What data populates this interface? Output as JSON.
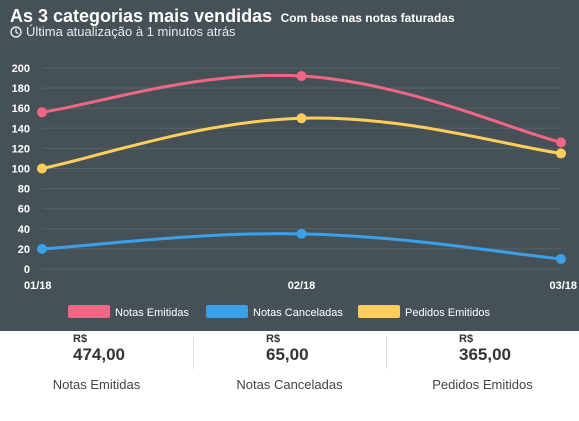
{
  "header": {
    "title": "As 3 categorias mais vendidas",
    "subtitle": "Com base nas notas faturadas",
    "update_text": "Última atualização à 1 minutos atrás",
    "update_icon": "clock-icon"
  },
  "colors": {
    "panel_bg": "#465157",
    "notas_emitidas": "#f06684",
    "notas_canceladas": "#3aa0ea",
    "pedidos_emitidos": "#fdcf5a"
  },
  "chart_data": {
    "type": "line",
    "title": "As 3 categorias mais vendidas",
    "x": [
      "01/18",
      "02/18",
      "03/18"
    ],
    "ylim": [
      0,
      200
    ],
    "yticks": [
      0,
      20,
      40,
      60,
      80,
      100,
      120,
      140,
      160,
      180,
      200
    ],
    "grid": true,
    "legend": "bottom",
    "series": [
      {
        "name": "Notas Emitidas",
        "values": [
          156,
          192,
          126
        ],
        "color": "#f06684"
      },
      {
        "name": "Notas Canceladas",
        "values": [
          20,
          35,
          10
        ],
        "color": "#3aa0ea"
      },
      {
        "name": "Pedidos Emitidos",
        "values": [
          100,
          150,
          115
        ],
        "color": "#fdcf5a"
      }
    ]
  },
  "summary": [
    {
      "currency": "R$",
      "amount": "474,00",
      "label": "Notas Emitidas"
    },
    {
      "currency": "R$",
      "amount": "65,00",
      "label": "Notas Canceladas"
    },
    {
      "currency": "R$",
      "amount": "365,00",
      "label": "Pedidos Emitidos"
    }
  ]
}
